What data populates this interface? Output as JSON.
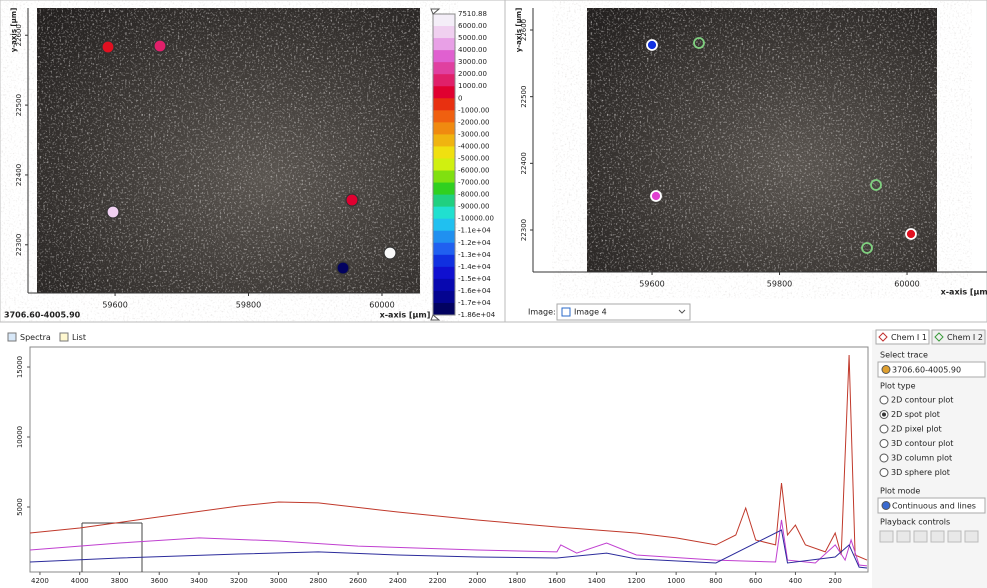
{
  "image_left": {
    "y_axis_label": "y-axis [µm]",
    "x_axis_label": "x-axis [µm]",
    "trace_label": "3706.60-4005.90",
    "xlim": [
      59483,
      60057
    ],
    "ylim": [
      22231,
      22639
    ],
    "xticks": [
      59600,
      59800,
      60000
    ],
    "yticks": [
      22600,
      22500,
      22400,
      22300
    ]
  },
  "colorbar": {
    "labels": [
      "7510.88",
      "6000.00",
      "5000.00",
      "4000.00",
      "3000.00",
      "2000.00",
      "1000.00",
      "0",
      "-1000.00",
      "-2000.00",
      "-3000.00",
      "-4000.00",
      "-5000.00",
      "-6000.00",
      "-7000.00",
      "-8000.00",
      "-9000.00",
      "-10000.00",
      "-1.1e+04",
      "-1.2e+04",
      "-1.3e+04",
      "-1.4e+04",
      "-1.5e+04",
      "-1.6e+04",
      "-1.7e+04",
      "-1.86e+04"
    ],
    "colors": [
      "#f4eef8",
      "#f0d0f0",
      "#e8a0e6",
      "#e060d0",
      "#e040a0",
      "#e0206a",
      "#e00030",
      "#e83010",
      "#f06010",
      "#f08a10",
      "#f0b410",
      "#f0e010",
      "#d0f010",
      "#80e010",
      "#30d020",
      "#20d080",
      "#20e0d0",
      "#20c0f0",
      "#2090f0",
      "#2060f0",
      "#1030e0",
      "#1010d0",
      "#0808b0",
      "#040490",
      "#020260"
    ]
  },
  "image_right": {
    "y_axis_label": "y-axis [µm]",
    "x_axis_label": "x-axis [µm]",
    "xlim": [
      59498,
      60047
    ],
    "ylim": [
      22237,
      22633
    ],
    "xticks": [
      59600,
      59800,
      60000
    ],
    "yticks": [
      22600,
      22500,
      22400,
      22300
    ],
    "image_label": "Image:",
    "image_select": "Image 4"
  },
  "tabs": [
    "Spectra",
    "List"
  ],
  "spectra": {
    "type": "line",
    "xlim": [
      4250,
      35
    ],
    "ylim": [
      357,
      16430
    ],
    "xticks": [
      4200,
      4000,
      3800,
      3600,
      3400,
      3200,
      3000,
      2800,
      2600,
      2400,
      2200,
      2000,
      1800,
      1600,
      1400,
      1200,
      1000,
      800,
      600,
      400,
      200
    ],
    "yticks": [
      5000,
      10000,
      15000
    ],
    "series": [
      {
        "color": "#c0392b",
        "x": [
          4250,
          4000,
          3600,
          3200,
          3000,
          2800,
          2400,
          2000,
          1600,
          1200,
          1000,
          800,
          700,
          650,
          600,
          500,
          470,
          440,
          400,
          350,
          250,
          200,
          170,
          130,
          100,
          40
        ],
        "values": [
          3140,
          3500,
          4290,
          5070,
          5360,
          5290,
          4640,
          4070,
          3570,
          3140,
          2790,
          2290,
          3000,
          4930,
          2640,
          2290,
          6710,
          3000,
          3710,
          2290,
          1790,
          3140,
          1570,
          15860,
          1570,
          1210
        ]
      },
      {
        "color": "#c040d0",
        "x": [
          4250,
          3800,
          3400,
          3000,
          2600,
          2000,
          1600,
          1580,
          1500,
          1350,
          1200,
          800,
          500,
          470,
          440,
          300,
          200,
          150,
          120,
          80,
          40
        ],
        "values": [
          1930,
          2430,
          2790,
          2570,
          2210,
          1930,
          1790,
          2290,
          1710,
          2430,
          1570,
          1210,
          1070,
          4070,
          1210,
          1000,
          2290,
          1210,
          2640,
          860,
          790
        ]
      },
      {
        "color": "#2c2c9c",
        "x": [
          4250,
          3800,
          3200,
          2800,
          2400,
          2000,
          1600,
          1350,
          1200,
          800,
          470,
          440,
          200,
          130,
          80,
          40
        ],
        "values": [
          1070,
          1360,
          1640,
          1790,
          1570,
          1430,
          1360,
          1710,
          1290,
          1000,
          3360,
          1000,
          1430,
          2290,
          710,
          640
        ]
      }
    ]
  },
  "sidebar": {
    "tabs": [
      "Chem I 1",
      "Chem I 2"
    ],
    "select_trace": "Select trace",
    "trace": "3706.60-4005.90",
    "plot_type": "Plot type",
    "plot_types": [
      "2D contour plot",
      "2D spot plot",
      "2D pixel plot",
      "3D contour plot",
      "3D column plot",
      "3D sphere plot"
    ],
    "plot_mode": "Plot mode",
    "mode": "Continuous and lines",
    "playback": "Playback controls"
  }
}
